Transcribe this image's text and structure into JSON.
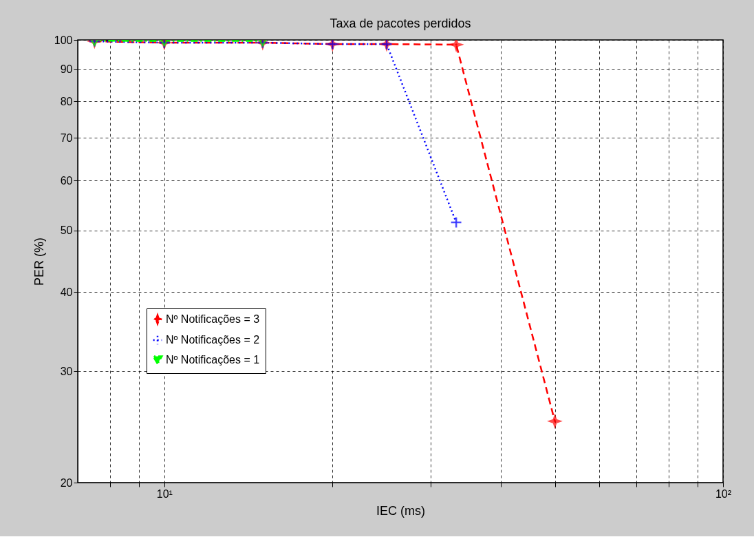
{
  "chart_data": {
    "type": "line",
    "title": "Taxa de pacotes perdidos",
    "xlabel": "IEC (ms)",
    "ylabel": "PER (%)",
    "log": "xy",
    "grid": true,
    "legend": "bottom left",
    "xlim": [
      7,
      100
    ],
    "ylim": [
      20,
      100
    ],
    "xticks": [
      {
        "value": 8,
        "label": null
      },
      {
        "value": 9,
        "label": null
      },
      {
        "value": 10,
        "label": "10¹"
      },
      {
        "value": 20,
        "label": null
      },
      {
        "value": 30,
        "label": null
      },
      {
        "value": 40,
        "label": null
      },
      {
        "value": 50,
        "label": null
      },
      {
        "value": 60,
        "label": null
      },
      {
        "value": 70,
        "label": null
      },
      {
        "value": 80,
        "label": null
      },
      {
        "value": 90,
        "label": null
      },
      {
        "value": 100,
        "label": "10²"
      }
    ],
    "yticks": [
      20,
      30,
      40,
      50,
      60,
      70,
      80,
      90,
      100
    ],
    "series": [
      {
        "name": "Nº Notificações = 3",
        "color": "#ff0000",
        "marker": "star",
        "line_style": "dashed",
        "x": [
          7.5,
          10,
          15,
          20,
          25,
          33.3,
          50
        ],
        "values": [
          99.5,
          99,
          99,
          98.5,
          98.5,
          98.3,
          25
        ]
      },
      {
        "name": "Nº Notificações = 2",
        "color": "#0000ff",
        "marker": "cross",
        "line_style": "dotted",
        "x": [
          7.5,
          10,
          15,
          20,
          25,
          33.3
        ],
        "values": [
          99.5,
          99,
          99,
          98.5,
          98.5,
          51.5
        ]
      },
      {
        "name": "Nº Notificações = 1",
        "color": "#00ff00",
        "marker": "triangle",
        "line_style": "dashdot",
        "x": [
          7.5,
          10,
          15
        ],
        "values": [
          99.7,
          99.6,
          99.6
        ]
      }
    ]
  }
}
